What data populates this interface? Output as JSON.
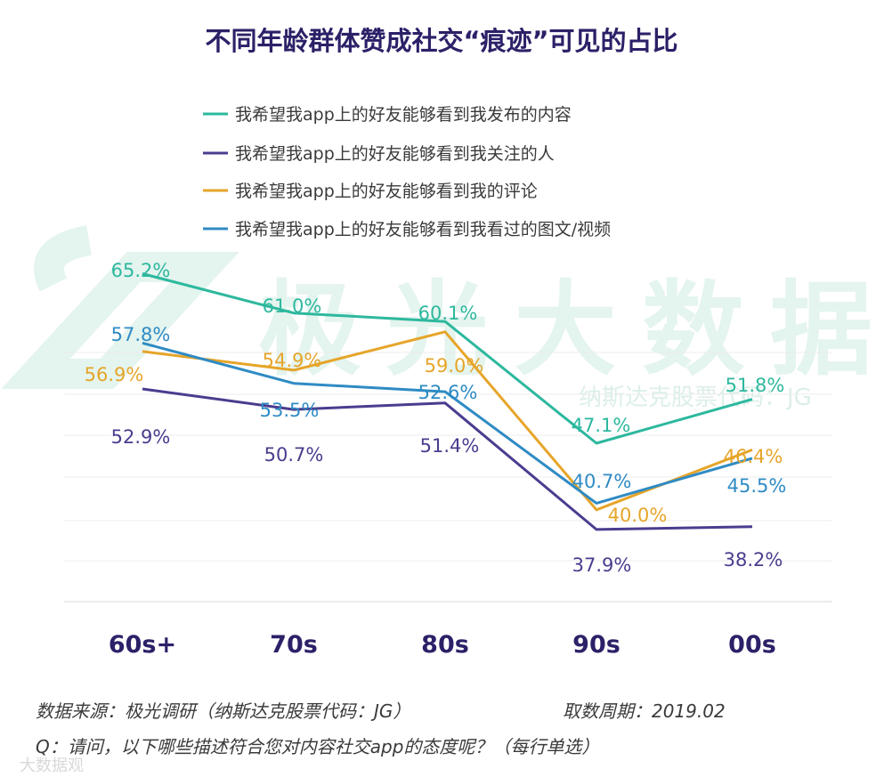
{
  "chart_data": {
    "type": "line",
    "title": "不同年龄群体赞成社交“痕迹”可见的占比",
    "categories": [
      "60s+",
      "70s",
      "80s",
      "90s",
      "00s"
    ],
    "ylim": [
      30,
      70
    ],
    "grid": true,
    "legend_position": "top-center",
    "series": [
      {
        "name": "我希望我app上的好友能够看到我发布的内容",
        "color": "#2db89e",
        "values": [
          65.2,
          61.0,
          60.1,
          47.1,
          51.8
        ],
        "labels": [
          "65.2%",
          "61.0%",
          "60.1%",
          "47.1%",
          "51.8%"
        ]
      },
      {
        "name": "我希望我app上的好友能够看到我关注的人",
        "color": "#4b3c8f",
        "values": [
          52.9,
          50.7,
          51.4,
          37.9,
          38.2
        ],
        "labels": [
          "52.9%",
          "50.7%",
          "51.4%",
          "37.9%",
          "38.2%"
        ]
      },
      {
        "name": "我希望我app上的好友能够看到我的评论",
        "color": "#e6a52a",
        "values": [
          56.9,
          54.9,
          59.0,
          40.0,
          46.4
        ],
        "labels": [
          "56.9%",
          "54.9%",
          "59.0%",
          "40.0%",
          "46.4%"
        ]
      },
      {
        "name": "我希望我app上的好友能够看到我看过的图文/视频",
        "color": "#2f8bc4",
        "values": [
          57.8,
          53.5,
          52.6,
          40.7,
          45.5
        ],
        "labels": [
          "57.8%",
          "53.5%",
          "52.6%",
          "40.7%",
          "45.5%"
        ]
      }
    ]
  },
  "watermark": {
    "text": "极光大数据",
    "subtext": "纳斯达克股票代码：JG",
    "corner": "大数据观"
  },
  "footer": {
    "source": "数据来源：极光调研（纳斯达克股票代码：JG）",
    "period": "取数周期：2019.02",
    "question": "Q：请问，以下哪些描述符合您对内容社交app的态度呢？（每行单选）"
  },
  "colors": {
    "title": "#2b2168",
    "text": "#3a3a3a",
    "grid": "#e6e6e6",
    "watermark": "#e4f4ee"
  }
}
